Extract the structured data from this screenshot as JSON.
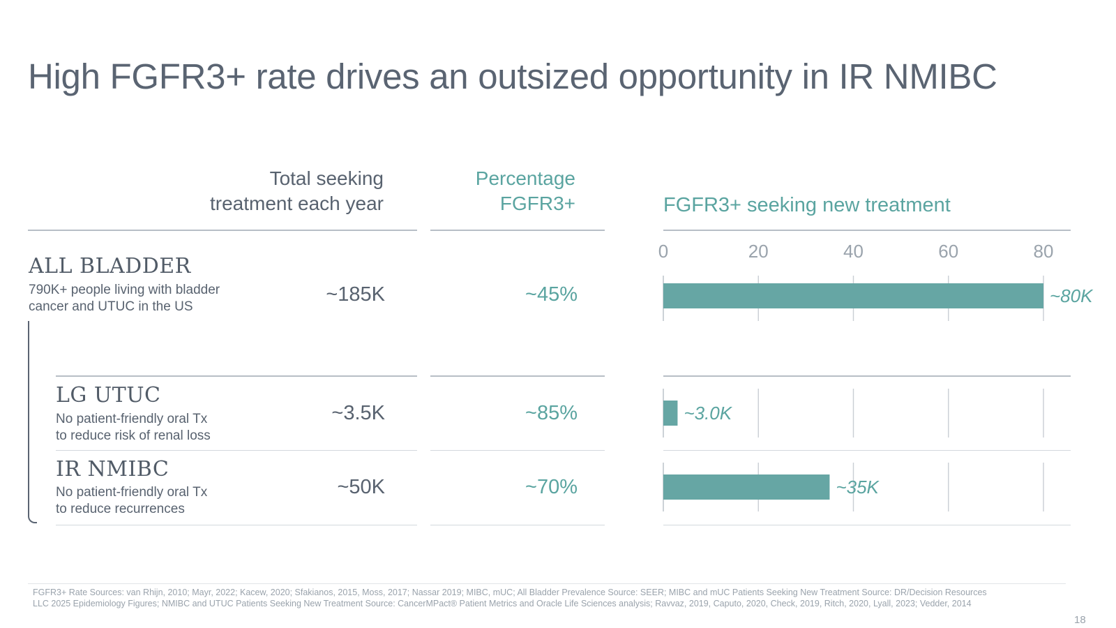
{
  "title": "High FGFR3+ rate drives an outsized opportunity in IR NMIBC",
  "columns": {
    "total_line1": "Total seeking",
    "total_line2": "treatment each year",
    "pct_line1": "Percentage",
    "pct_line2": "FGFR3+",
    "chart_title": "FGFR3+ seeking new treatment"
  },
  "rows": [
    {
      "name": "ALL BLADDER",
      "desc_line1": "790K+ people living with bladder",
      "desc_line2": "cancer and UTUC in the US",
      "total": "~185K",
      "pct": "~45%"
    },
    {
      "name": "LG UTUC",
      "desc_line1": "No patient-friendly oral Tx",
      "desc_line2": "to reduce risk of renal loss",
      "total": "~3.5K",
      "pct": "~85%"
    },
    {
      "name": "IR NMIBC",
      "desc_line1": "No patient-friendly oral Tx",
      "desc_line2": "to reduce recurrences",
      "total": "~50K",
      "pct": "~70%"
    }
  ],
  "chart_data": {
    "type": "bar",
    "orientation": "horizontal",
    "title": "FGFR3+ seeking new treatment",
    "categories": [
      "ALL BLADDER",
      "LG UTUC",
      "IR NMIBC"
    ],
    "values": [
      80,
      3.0,
      35
    ],
    "data_labels": [
      "~80K",
      "~3.0K",
      "~35K"
    ],
    "xlim": [
      0,
      80
    ],
    "ticks": [
      0,
      20,
      40,
      60,
      80
    ],
    "tick_labels": [
      "0",
      "20",
      "40",
      "60",
      "80"
    ],
    "grid": true,
    "bar_color": "#66a6a4"
  },
  "footer": {
    "line1": "FGFR3+ Rate Sources: van Rhijn, 2010; Mayr, 2022; Kacew, 2020; Sfakianos, 2015, Moss, 2017; Nassar 2019; MIBC, mUC; All Bladder Prevalence Source: SEER; MIBC and mUC Patients Seeking New Treatment Source: DR/Decision Resources",
    "line2": "LLC 2025 Epidemiology Figures; NMIBC and UTUC Patients Seeking New Treatment Source: CancerMPact® Patient Metrics and Oracle Life Sciences analysis; Ravvaz, 2019, Caputo, 2020, Check, 2019, Ritch, 2020, Lyall, 2023; Vedder, 2014"
  },
  "page_number": "18",
  "colors": {
    "teal": "#5aa4a0",
    "bar": "#66a6a4",
    "text": "#58626f"
  }
}
